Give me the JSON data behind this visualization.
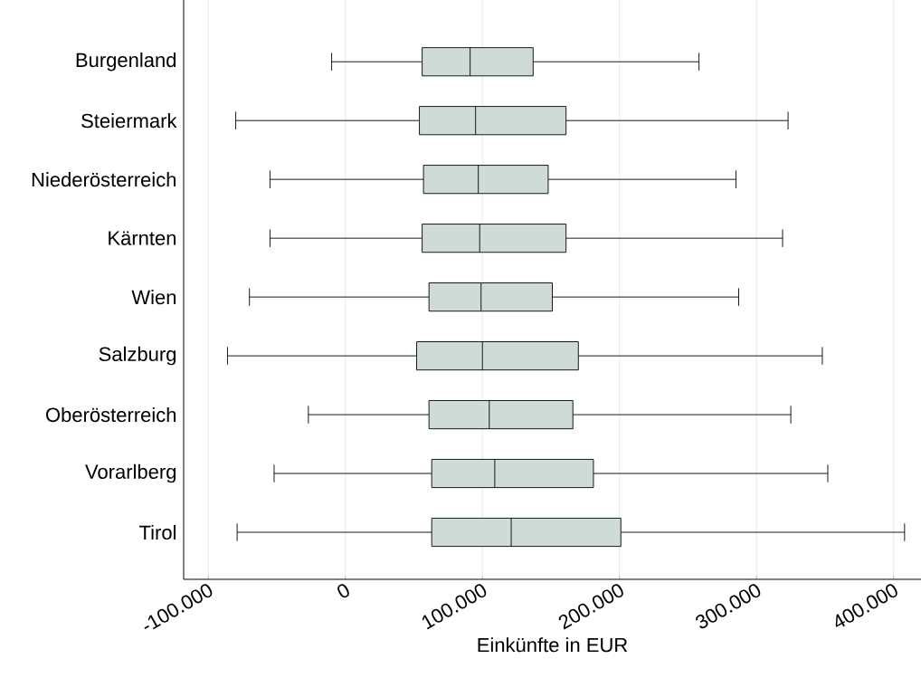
{
  "chart_data": {
    "type": "box",
    "orientation": "horizontal",
    "xlabel": "Einkünfte in EUR",
    "color": "#cfdbd7",
    "grid": "x",
    "categories": [
      "Burgenland",
      "Steiermark",
      "Niederösterreich",
      "Kärnten",
      "Wien",
      "Salzburg",
      "Oberösterreich",
      "Vorarlberg",
      "Tirol"
    ],
    "boxes": [
      {
        "low": -10000,
        "q1": 56000,
        "median": 91000,
        "q3": 137000,
        "high": 258000
      },
      {
        "low": -80000,
        "q1": 54000,
        "median": 95000,
        "q3": 161000,
        "high": 323000
      },
      {
        "low": -55000,
        "q1": 57000,
        "median": 97000,
        "q3": 148000,
        "high": 285000
      },
      {
        "low": -55000,
        "q1": 56000,
        "median": 98000,
        "q3": 161000,
        "high": 319000
      },
      {
        "low": -70000,
        "q1": 61000,
        "median": 99000,
        "q3": 151000,
        "high": 287000
      },
      {
        "low": -86000,
        "q1": 52000,
        "median": 100000,
        "q3": 170000,
        "high": 348000
      },
      {
        "low": -27000,
        "q1": 61000,
        "median": 105000,
        "q3": 166000,
        "high": 325000
      },
      {
        "low": -52000,
        "q1": 63000,
        "median": 109000,
        "q3": 181000,
        "high": 352000
      },
      {
        "low": -79000,
        "q1": 63000,
        "median": 121000,
        "q3": 201000,
        "high": 408000
      }
    ],
    "xlim": [
      -118000,
      420000
    ],
    "xticks": [
      {
        "value": -100000,
        "label": "-100.000"
      },
      0,
      {
        "value": 100000,
        "label": "100.000"
      },
      {
        "value": 200000,
        "label": "200.000"
      },
      {
        "value": 300000,
        "label": "300.000"
      },
      {
        "value": 400000,
        "label": "400.000"
      }
    ]
  }
}
